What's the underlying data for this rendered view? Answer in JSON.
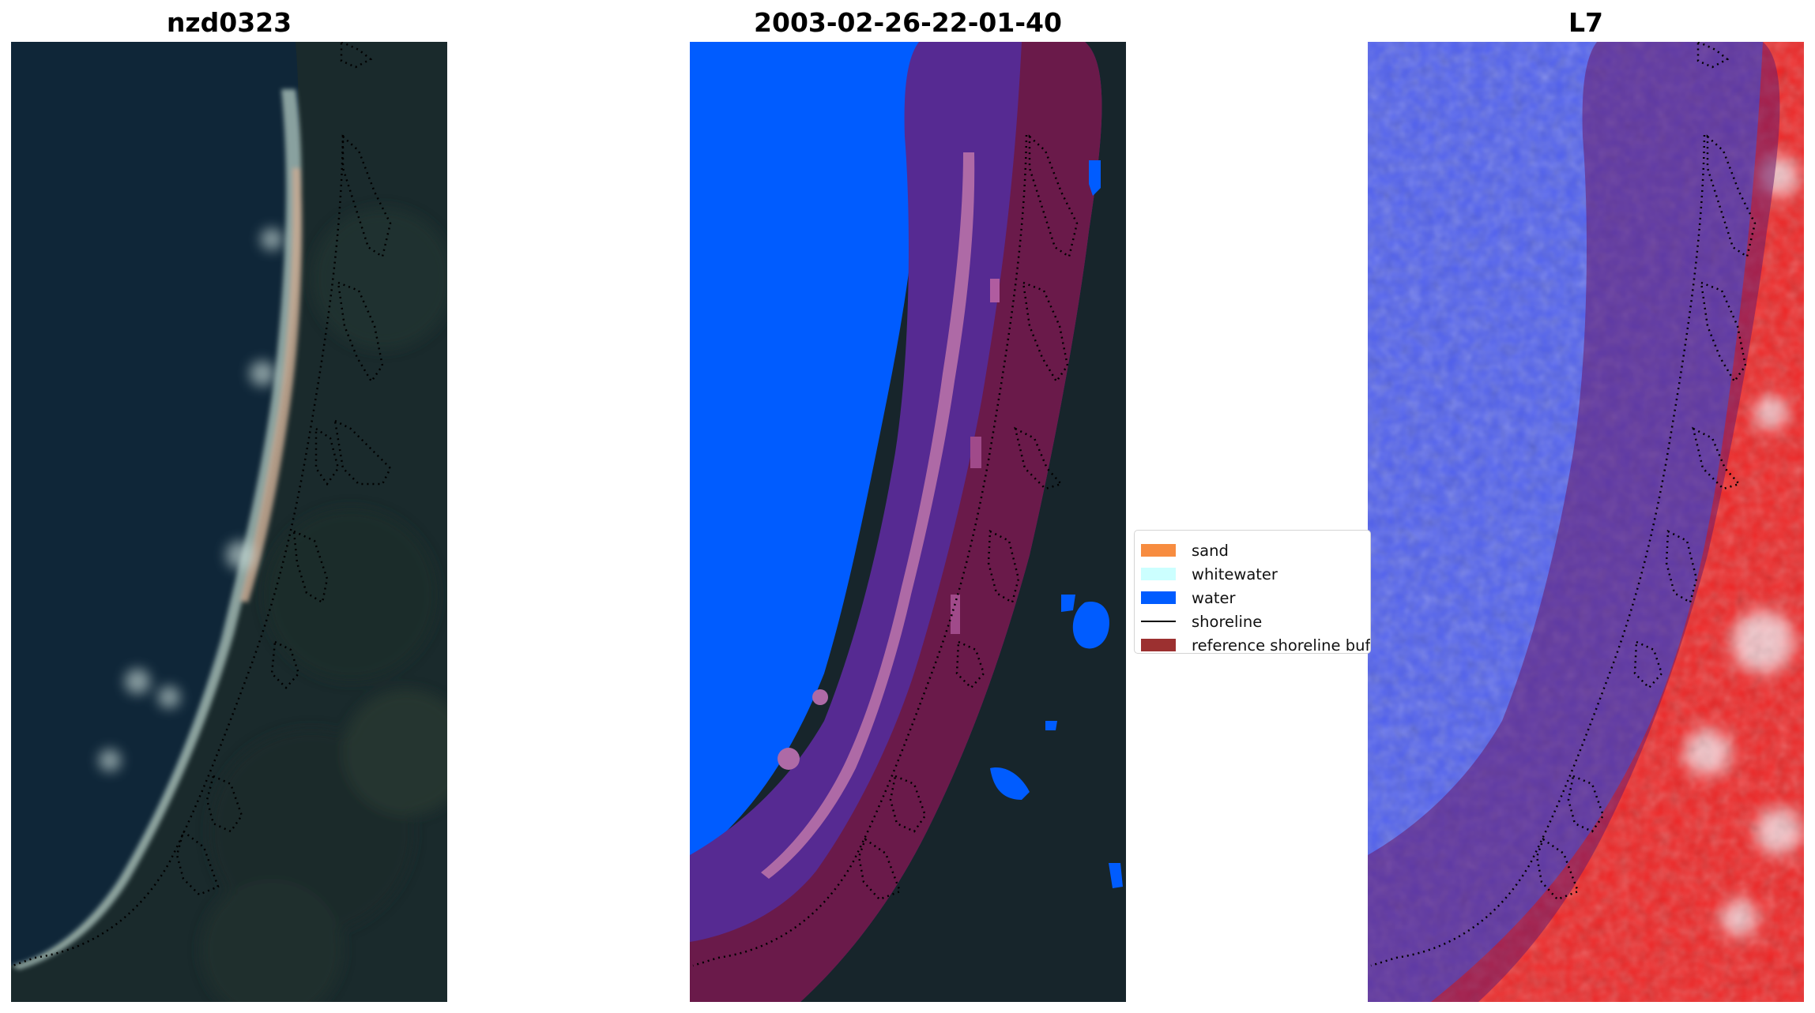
{
  "panels": [
    {
      "title": "nzd0323",
      "content": "rgb-satellite-image"
    },
    {
      "title": "2003-02-26-22-01-40",
      "content": "classified-image-overlay"
    },
    {
      "title": "L7",
      "content": "water-index-image"
    }
  ],
  "legend": {
    "items": [
      {
        "label": "sand",
        "color": "#f78c40",
        "kind": "patch"
      },
      {
        "label": "whitewater",
        "color": "#ccffff",
        "kind": "patch"
      },
      {
        "label": "water",
        "color": "#005cff",
        "kind": "patch"
      },
      {
        "label": "shoreline",
        "color": "#000000",
        "kind": "line"
      },
      {
        "label": "reference shoreline buffer",
        "color": "#9c3030",
        "kind": "patch"
      }
    ]
  },
  "colors": {
    "ocean_dark": "#0f2638",
    "forest_dark": "#17252b",
    "class_water": "#005cff",
    "buffer": "#6a1a4a",
    "index_blue": "#4a52f2",
    "index_red": "#f02020"
  }
}
